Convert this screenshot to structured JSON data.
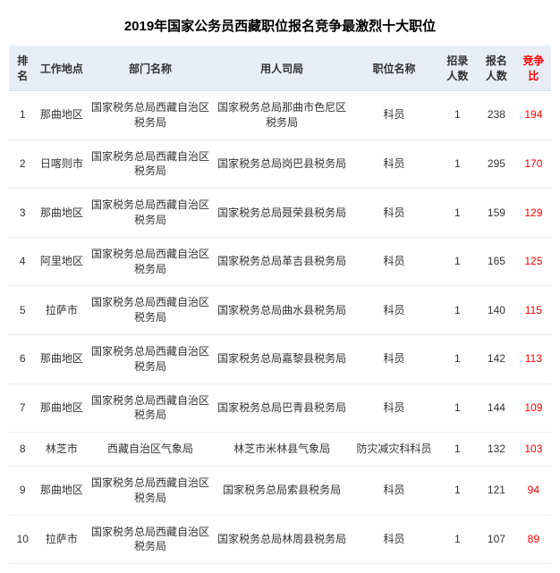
{
  "title": "2019年国家公务员西藏职位报名竞争最激烈十大职位",
  "columns": {
    "rank": "排名",
    "location": "工作地点",
    "department": "部门名称",
    "org": "用人司局",
    "position": "职位名称",
    "recruit": "招录人数",
    "applicants": "报名人数",
    "ratio": "竞争比"
  },
  "rows": [
    {
      "rank": "1",
      "location": "那曲地区",
      "department": "国家税务总局西藏自治区税务局",
      "org": "国家税务总局那曲市色尼区税务局",
      "position": "科员",
      "recruit": "1",
      "applicants": "238",
      "ratio": "194"
    },
    {
      "rank": "2",
      "location": "日喀则市",
      "department": "国家税务总局西藏自治区税务局",
      "org": "国家税务总局岗巴县税务局",
      "position": "科员",
      "recruit": "1",
      "applicants": "295",
      "ratio": "170"
    },
    {
      "rank": "3",
      "location": "那曲地区",
      "department": "国家税务总局西藏自治区税务局",
      "org": "国家税务总局聂荣县税务局",
      "position": "科员",
      "recruit": "1",
      "applicants": "159",
      "ratio": "129"
    },
    {
      "rank": "4",
      "location": "阿里地区",
      "department": "国家税务总局西藏自治区税务局",
      "org": "国家税务总局革吉县税务局",
      "position": "科员",
      "recruit": "1",
      "applicants": "165",
      "ratio": "125"
    },
    {
      "rank": "5",
      "location": "拉萨市",
      "department": "国家税务总局西藏自治区税务局",
      "org": "国家税务总局曲水县税务局",
      "position": "科员",
      "recruit": "1",
      "applicants": "140",
      "ratio": "115"
    },
    {
      "rank": "6",
      "location": "那曲地区",
      "department": "国家税务总局西藏自治区税务局",
      "org": "国家税务总局嘉黎县税务局",
      "position": "科员",
      "recruit": "1",
      "applicants": "142",
      "ratio": "113"
    },
    {
      "rank": "7",
      "location": "那曲地区",
      "department": "国家税务总局西藏自治区税务局",
      "org": "国家税务总局巴青县税务局",
      "position": "科员",
      "recruit": "1",
      "applicants": "144",
      "ratio": "109"
    },
    {
      "rank": "8",
      "location": "林芝市",
      "department": "西藏自治区气象局",
      "org": "林芝市米林县气象局",
      "position": "防灾减灾科科员",
      "recruit": "1",
      "applicants": "132",
      "ratio": "103"
    },
    {
      "rank": "9",
      "location": "那曲地区",
      "department": "国家税务总局西藏自治区税务局",
      "org": "国家税务总局索县税务局",
      "position": "科员",
      "recruit": "1",
      "applicants": "121",
      "ratio": "94"
    },
    {
      "rank": "10",
      "location": "拉萨市",
      "department": "国家税务总局西藏自治区税务局",
      "org": "国家税务总局林周县税务局",
      "position": "科员",
      "recruit": "1",
      "applicants": "107",
      "ratio": "89"
    }
  ],
  "styling": {
    "header_bg": "#e9eef5",
    "border_color": "#eeeeee",
    "ratio_color": "#ff0000",
    "title_fontsize": 15,
    "body_fontsize": 12,
    "background": "#ffffff",
    "text_color": "#333333"
  }
}
